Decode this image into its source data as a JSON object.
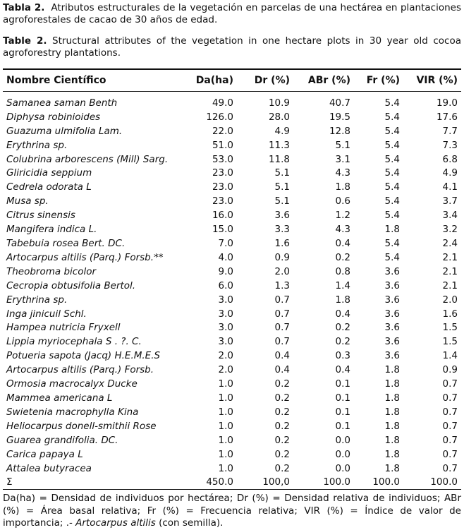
{
  "caption_es": {
    "label": "Tabla 2.",
    "text": "Atributos estructurales de la vegetación en parcelas de una hectárea en plantaciones agroforestales de cacao de 30 años de edad."
  },
  "caption_en": {
    "label": "Table 2.",
    "text": "Structural attributes of the vegetation in one hectare plots in 30 year old cocoa agroforestry plantations."
  },
  "table": {
    "headers": [
      "Nombre Científico",
      "Da(ha)",
      "Dr (%)",
      "ABr (%)",
      "Fr (%)",
      "VIR (%)"
    ],
    "rows": [
      [
        "Samanea saman Benth",
        "49.0",
        "10.9",
        "40.7",
        "5.4",
        "19.0"
      ],
      [
        "Diphysa robinioides",
        "126.0",
        "28.0",
        "19.5",
        "5.4",
        "17.6"
      ],
      [
        "Guazuma ulmifolia Lam.",
        "22.0",
        "4.9",
        "12.8",
        "5.4",
        "7.7"
      ],
      [
        "Erythrina sp.",
        "51.0",
        "11.3",
        "5.1",
        "5.4",
        "7.3"
      ],
      [
        "Colubrina arborescens (Mill) Sarg.",
        "53.0",
        "11.8",
        "3.1",
        "5.4",
        "6.8"
      ],
      [
        "Gliricidia seppium",
        "23.0",
        "5.1",
        "4.3",
        "5.4",
        "4.9"
      ],
      [
        "Cedrela odorata L",
        "23.0",
        "5.1",
        "1.8",
        "5.4",
        "4.1"
      ],
      [
        "Musa sp.",
        "23.0",
        "5.1",
        "0.6",
        "5.4",
        "3.7"
      ],
      [
        "Citrus sinensis",
        "16.0",
        "3.6",
        "1.2",
        "5.4",
        "3.4"
      ],
      [
        "Mangifera indica L.",
        "15.0",
        "3.3",
        "4.3",
        "1.8",
        "3.2"
      ],
      [
        "Tabebuia rosea Bert. DC.",
        "7.0",
        "1.6",
        "0.4",
        "5.4",
        "2.4"
      ],
      [
        "Artocarpus altilis (Parq.) Forsb.**",
        "4.0",
        "0.9",
        "0.2",
        "5.4",
        "2.1"
      ],
      [
        "Theobroma bicolor",
        "9.0",
        "2.0",
        "0.8",
        "3.6",
        "2.1"
      ],
      [
        "Cecropia obtusifolia Bertol.",
        "6.0",
        "1.3",
        "1.4",
        "3.6",
        "2.1"
      ],
      [
        "Erythrina sp.",
        "3.0",
        "0.7",
        "1.8",
        "3.6",
        "2.0"
      ],
      [
        "Inga jinicuil Schl.",
        "3.0",
        "0.7",
        "0.4",
        "3.6",
        "1.6"
      ],
      [
        "Hampea nutricia Fryxell",
        "3.0",
        "0.7",
        "0.2",
        "3.6",
        "1.5"
      ],
      [
        "Lippia myriocephala S . ?. C.",
        "3.0",
        "0.7",
        "0.2",
        "3.6",
        "1.5"
      ],
      [
        "Potueria sapota (Jacq) H.E.M.E.S",
        "2.0",
        "0.4",
        "0.3",
        "3.6",
        "1.4"
      ],
      [
        "Artocarpus altilis (Parq.) Forsb.",
        "2.0",
        "0.4",
        "0.4",
        "1.8",
        "0.9"
      ],
      [
        "Ormosia macrocalyx Ducke",
        "1.0",
        "0.2",
        "0.1",
        "1.8",
        "0.7"
      ],
      [
        "Mammea americana L",
        "1.0",
        "0.2",
        "0.1",
        "1.8",
        "0.7"
      ],
      [
        "Swietenia macrophylla Kina",
        "1.0",
        "0.2",
        "0.1",
        "1.8",
        "0.7"
      ],
      [
        "Heliocarpus donell-smithii Rose",
        "1.0",
        "0.2",
        "0.1",
        "1.8",
        "0.7"
      ],
      [
        "Guarea grandifolia. DC.",
        "1.0",
        "0.2",
        "0.0",
        "1.8",
        "0.7"
      ],
      [
        "Carica papaya L",
        "1.0",
        "0.2",
        "0.0",
        "1.8",
        "0.7"
      ],
      [
        "Attalea butyracea",
        "1.0",
        "0.2",
        "0.0",
        "1.8",
        "0.7"
      ]
    ],
    "sum_row": [
      "Σ",
      "450.0",
      "100,0",
      "100.0",
      "100.0",
      "100.0"
    ]
  },
  "footnote": {
    "text": "Da(ha) = Densidad de individuos por hectárea; Dr (%) = Densidad relativa de individuos; ABr (%) = Área basal relativa; Fr (%) = Frecuencia relativa; VIR (%) = Índice de valor de importancia; .- ",
    "italic": "Artocarpus altilis",
    "tail": " (con semilla)."
  }
}
